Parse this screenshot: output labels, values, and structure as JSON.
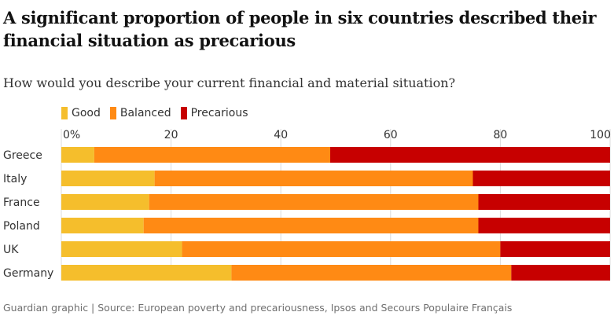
{
  "title": "A significant proportion of people in six countries described their financial situation as precarious",
  "subtitle": "How would you describe your current financial and material situation?",
  "source": "Guardian graphic | Source: European poverty and precariousness, Ipsos and Secours Populaire Français",
  "colors": {
    "good": "#f5be2c",
    "balanced": "#ff8a14",
    "precarious": "#c70000",
    "grid": "#dcdcdc"
  },
  "chart_data": {
    "type": "bar",
    "orientation": "horizontal",
    "stacked": true,
    "categories": [
      "Greece",
      "Italy",
      "France",
      "Poland",
      "UK",
      "Germany"
    ],
    "series": [
      {
        "name": "Good",
        "values": [
          6,
          17,
          16,
          15,
          22,
          31
        ]
      },
      {
        "name": "Balanced",
        "values": [
          43,
          58,
          60,
          61,
          58,
          51
        ]
      },
      {
        "name": "Precarious",
        "values": [
          51,
          25,
          24,
          24,
          20,
          18
        ]
      }
    ],
    "xlim": [
      0,
      100
    ],
    "xticks": [
      0,
      20,
      40,
      60,
      80,
      100
    ],
    "xtick_labels": [
      "0%",
      "20",
      "40",
      "60",
      "80",
      "100"
    ],
    "legend": "top-left",
    "grid": true
  }
}
